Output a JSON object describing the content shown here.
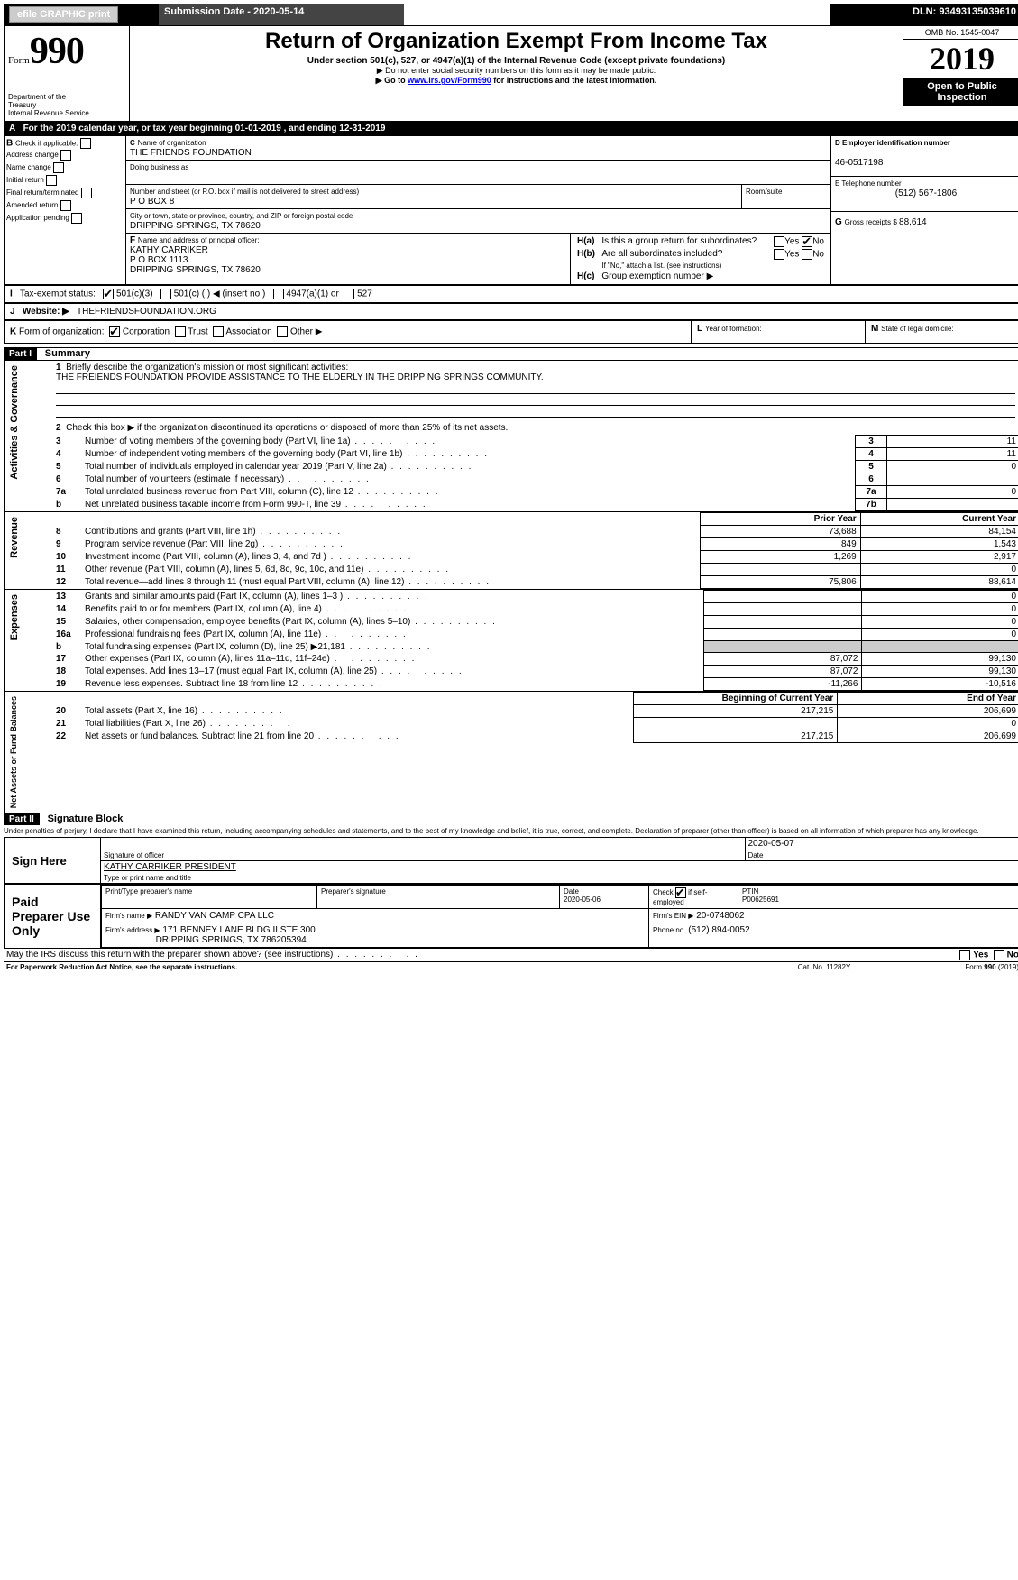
{
  "topbar": {
    "efile": "efile GRAPHIC print",
    "submission_label": "Submission Date - ",
    "submission_date": "2020-05-14",
    "dln_label": "DLN: ",
    "dln": "93493135039610"
  },
  "header": {
    "form_prefix": "Form",
    "form_number": "990",
    "dept1": "Department of the",
    "dept2": "Treasury",
    "dept3": "Internal Revenue Service",
    "title": "Return of Organization Exempt From Income Tax",
    "subtitle1": "Under section 501(c), 527, or 4947(a)(1) of the Internal Revenue Code (except private foundations)",
    "subtitle2_pre": "▶ Do not enter social security numbers on this form as it may be made public.",
    "subtitle3_pre": "▶ Go to ",
    "subtitle3_link": "www.irs.gov/Form990",
    "subtitle3_post": " for instructions and the latest information.",
    "omb": "OMB No. 1545-0047",
    "year": "2019",
    "open1": "Open to Public",
    "open2": "Inspection"
  },
  "rowA": {
    "label": "A",
    "text1": "For the 2019 calendar year, or tax year beginning ",
    "begin": "01-01-2019",
    "text2": ", and ending ",
    "end": "12-31-2019"
  },
  "boxB": {
    "label": "B",
    "check_label": "Check if applicable:",
    "items": [
      "Address change",
      "Name change",
      "Initial return",
      "Final return/terminated",
      "Amended return",
      "Application pending"
    ]
  },
  "boxC": {
    "label": "C",
    "name_label": "Name of organization",
    "name": "THE FRIENDS FOUNDATION",
    "dba_label": "Doing business as",
    "street_label": "Number and street (or P.O. box if mail is not delivered to street address)",
    "room_label": "Room/suite",
    "street": "P O BOX 8",
    "city_label": "City or town, state or province, country, and ZIP or foreign postal code",
    "city": "DRIPPING SPRINGS, TX  78620"
  },
  "boxD": {
    "label": "D Employer identification number",
    "ein": "46-0517198"
  },
  "boxE": {
    "label": "E Telephone number",
    "phone": "(512) 567-1806"
  },
  "boxG": {
    "label": "G",
    "text": "Gross receipts $ ",
    "amount": "88,614"
  },
  "boxF": {
    "label": "F",
    "text": "Name and address of principal officer:",
    "name": "KATHY CARRIKER",
    "addr1": "P O BOX 1113",
    "addr2": "DRIPPING SPRINGS, TX  78620"
  },
  "boxH": {
    "a_label": "H(a)",
    "a_text": "Is this a group return for subordinates?",
    "b_label": "H(b)",
    "b_text1": "Are all subordinates included?",
    "b_text2": "If \"No,\" attach a list. (see instructions)",
    "c_label": "H(c)",
    "c_text": "Group exemption number ▶",
    "yes": "Yes",
    "no": "No"
  },
  "boxI": {
    "label": "I",
    "text": "Tax-exempt status:",
    "opt1": "501(c)(3)",
    "opt2": "501(c) (   ) ◀ (insert no.)",
    "opt3": "4947(a)(1) or",
    "opt4": "527"
  },
  "boxJ": {
    "label": "J",
    "text": "Website: ▶",
    "value": "THEFRIENDSFOUNDATION.ORG"
  },
  "boxK": {
    "label": "K",
    "text": "Form of organization:",
    "opts": [
      "Corporation",
      "Trust",
      "Association",
      "Other ▶"
    ]
  },
  "boxL": {
    "label": "L",
    "text": "Year of formation:"
  },
  "boxM": {
    "label": "M",
    "text": "State of legal domicile:"
  },
  "part1": {
    "bar": "Part I",
    "title": "Summary",
    "vlabels": {
      "ag": "Activities & Governance",
      "rev": "Revenue",
      "exp": "Expenses",
      "net": "Net Assets or\nFund Balances"
    },
    "line1_label": "1",
    "line1_text": "Briefly describe the organization's mission or most significant activities:",
    "line1_value": "THE FREIENDS FOUNDATION PROVIDE ASSISTANCE TO THE ELDERLY IN THE DRIPPING SPRINGS COMMUNITY.",
    "line2_label": "2",
    "line2_text": "Check this box ▶       if the organization discontinued its operations or disposed of more than 25% of its net assets.",
    "lines_ag": [
      {
        "n": "3",
        "t": "Number of voting members of the governing body (Part VI, line 1a)",
        "rn": "3",
        "v": "11"
      },
      {
        "n": "4",
        "t": "Number of independent voting members of the governing body (Part VI, line 1b)",
        "rn": "4",
        "v": "11"
      },
      {
        "n": "5",
        "t": "Total number of individuals employed in calendar year 2019 (Part V, line 2a)",
        "rn": "5",
        "v": "0"
      },
      {
        "n": "6",
        "t": "Total number of volunteers (estimate if necessary)",
        "rn": "6",
        "v": ""
      },
      {
        "n": "7a",
        "t": "Total unrelated business revenue from Part VIII, column (C), line 12",
        "rn": "7a",
        "v": "0"
      },
      {
        "n": "b",
        "t": "Net unrelated business taxable income from Form 990-T, line 39",
        "rn": "7b",
        "v": ""
      }
    ],
    "twocol_hdr": {
      "py": "Prior Year",
      "cy": "Current Year"
    },
    "lines_rev": [
      {
        "n": "8",
        "t": "Contributions and grants (Part VIII, line 1h)",
        "py": "73,688",
        "cy": "84,154"
      },
      {
        "n": "9",
        "t": "Program service revenue (Part VIII, line 2g)",
        "py": "849",
        "cy": "1,543"
      },
      {
        "n": "10",
        "t": "Investment income (Part VIII, column (A), lines 3, 4, and 7d )",
        "py": "1,269",
        "cy": "2,917"
      },
      {
        "n": "11",
        "t": "Other revenue (Part VIII, column (A), lines 5, 6d, 8c, 9c, 10c, and 11e)",
        "py": "",
        "cy": "0"
      },
      {
        "n": "12",
        "t": "Total revenue—add lines 8 through 11 (must equal Part VIII, column (A), line 12)",
        "py": "75,806",
        "cy": "88,614"
      }
    ],
    "lines_exp": [
      {
        "n": "13",
        "t": "Grants and similar amounts paid (Part IX, column (A), lines 1–3 )",
        "py": "",
        "cy": "0"
      },
      {
        "n": "14",
        "t": "Benefits paid to or for members (Part IX, column (A), line 4)",
        "py": "",
        "cy": "0"
      },
      {
        "n": "15",
        "t": "Salaries, other compensation, employee benefits (Part IX, column (A), lines 5–10)",
        "py": "",
        "cy": "0"
      },
      {
        "n": "16a",
        "t": "Professional fundraising fees (Part IX, column (A), line 11e)",
        "py": "",
        "cy": "0"
      },
      {
        "n": "b",
        "t": "Total fundraising expenses (Part IX, column (D), line 25) ▶21,181",
        "py": "shade",
        "cy": "shade"
      },
      {
        "n": "17",
        "t": "Other expenses (Part IX, column (A), lines 11a–11d, 11f–24e)",
        "py": "87,072",
        "cy": "99,130"
      },
      {
        "n": "18",
        "t": "Total expenses. Add lines 13–17 (must equal Part IX, column (A), line 25)",
        "py": "87,072",
        "cy": "99,130"
      },
      {
        "n": "19",
        "t": "Revenue less expenses. Subtract line 18 from line 12",
        "py": "-11,266",
        "cy": "-10,516"
      }
    ],
    "twocol_hdr2": {
      "py": "Beginning of Current Year",
      "cy": "End of Year"
    },
    "lines_net": [
      {
        "n": "20",
        "t": "Total assets (Part X, line 16)",
        "py": "217,215",
        "cy": "206,699"
      },
      {
        "n": "21",
        "t": "Total liabilities (Part X, line 26)",
        "py": "",
        "cy": "0"
      },
      {
        "n": "22",
        "t": "Net assets or fund balances. Subtract line 21 from line 20",
        "py": "217,215",
        "cy": "206,699"
      }
    ]
  },
  "part2": {
    "bar": "Part II",
    "title": "Signature Block",
    "jurat": "Under penalties of perjury, I declare that I have examined this return, including accompanying schedules and statements, and to the best of my knowledge and belief, it is true, correct, and complete. Declaration of preparer (other than officer) is based on all information of which preparer has any knowledge.",
    "sign_here": "Sign Here",
    "sig_officer": "Signature of officer",
    "sig_date": "2020-05-07",
    "date_label": "Date",
    "officer_name": "KATHY CARRIKER  PRESIDENT",
    "type_name": "Type or print name and title",
    "paid": "Paid Preparer Use Only",
    "col1": "Print/Type preparer's name",
    "col2": "Preparer's signature",
    "col3": "Date",
    "col3v": "2020-05-06",
    "col4a": "Check",
    "col4b": "if self-employed",
    "col5": "PTIN",
    "col5v": "P00625691",
    "firm_name_label": "Firm's name    ▶",
    "firm_name": "RANDY VAN CAMP CPA LLC",
    "firm_ein_label": "Firm's EIN ▶",
    "firm_ein": "20-0748062",
    "firm_addr_label": "Firm's address ▶",
    "firm_addr1": "171 BENNEY LANE BLDG II STE 300",
    "firm_addr2": "DRIPPING SPRINGS, TX  786205394",
    "firm_phone_label": "Phone no.",
    "firm_phone": "(512) 894-0052",
    "discuss": "May the IRS discuss this return with the preparer shown above? (see instructions)",
    "yes": "Yes",
    "no": "No"
  },
  "footer": {
    "left": "For Paperwork Reduction Act Notice, see the separate instructions.",
    "mid": "Cat. No. 11282Y",
    "right": "Form 990 (2019)"
  }
}
